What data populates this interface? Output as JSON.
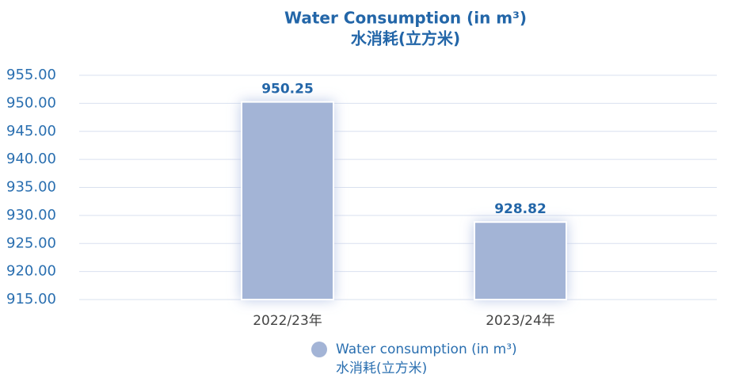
{
  "chart_data": {
    "type": "bar",
    "title": "Water Consumption (in m³)",
    "subtitle": "水消耗(立方米)",
    "categories": [
      "2022/23年",
      "2023/24年"
    ],
    "series": [
      {
        "name": [
          "Water consumption (in m³)",
          "水消耗(立方米)"
        ],
        "color": "#a3b4d6",
        "values": [
          950.25,
          928.82
        ]
      }
    ],
    "ylim": [
      915,
      955
    ],
    "yticks": [
      {
        "value": 915,
        "label": "915.00"
      },
      {
        "value": 920,
        "label": "920.00"
      },
      {
        "value": 925,
        "label": "925.00"
      },
      {
        "value": 930,
        "label": "930.00"
      },
      {
        "value": 935,
        "label": "935.00"
      },
      {
        "value": 940,
        "label": "940.00"
      },
      {
        "value": 945,
        "label": "945.00"
      },
      {
        "value": 950,
        "label": "950.00"
      },
      {
        "value": 955,
        "label": "955.00"
      }
    ],
    "grid": true
  }
}
